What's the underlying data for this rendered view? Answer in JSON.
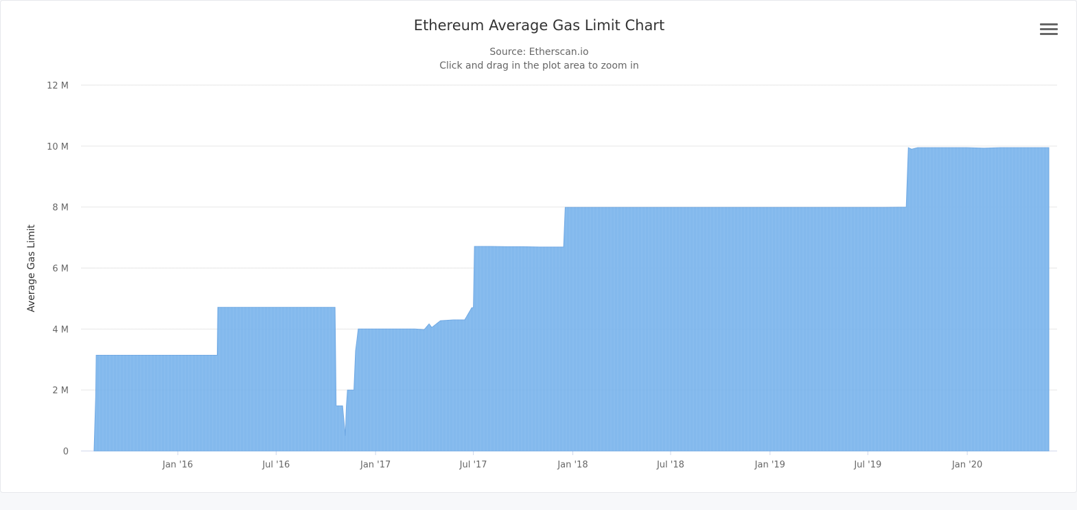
{
  "menu": {
    "icon": "hamburger-menu-icon"
  },
  "chart_data": {
    "type": "area",
    "title": "Ethereum Average Gas Limit Chart",
    "subtitle": [
      "Source: Etherscan.io",
      "Click and drag in the plot area to zoom in"
    ],
    "xlabel": "",
    "ylabel": "Average Gas Limit",
    "ylim": [
      0,
      12000000
    ],
    "xlim": [
      "2015-07-30",
      "2020-05-31"
    ],
    "y_ticks": [
      "0",
      "2 M",
      "4 M",
      "6 M",
      "8 M",
      "10 M",
      "12 M"
    ],
    "y_tick_values": [
      0,
      2000000,
      4000000,
      6000000,
      8000000,
      10000000,
      12000000
    ],
    "x_ticks": [
      "Jan '16",
      "Jul '16",
      "Jan '17",
      "Jul '17",
      "Jan '18",
      "Jul '18",
      "Jan '19",
      "Jul '19",
      "Jan '20"
    ],
    "x_tick_dates": [
      "2016-01-01",
      "2016-07-01",
      "2017-01-01",
      "2017-07-01",
      "2018-01-01",
      "2018-07-01",
      "2019-01-01",
      "2019-07-01",
      "2020-01-01"
    ],
    "grid": true,
    "legend": "none",
    "color": "#7cb5ec",
    "series": [
      {
        "x": [
          "2015-07-30",
          "2015-08-02",
          "2015-08-03",
          "2015-08-15",
          "2015-11-01",
          "2015-12-15",
          "2016-02-15",
          "2016-03-14",
          "2016-03-15",
          "2016-05-01",
          "2016-06-15",
          "2016-07-01",
          "2016-08-01",
          "2016-09-15",
          "2016-10-18",
          "2016-10-20",
          "2016-11-01",
          "2016-11-06",
          "2016-11-08",
          "2016-11-10",
          "2016-11-22",
          "2016-11-25",
          "2016-11-30",
          "2016-12-15",
          "2017-01-15",
          "2017-02-15",
          "2017-03-15",
          "2017-04-01",
          "2017-04-10",
          "2017-04-15",
          "2017-05-01",
          "2017-05-25",
          "2017-06-15",
          "2017-06-28",
          "2017-07-01",
          "2017-07-03",
          "2017-08-01",
          "2017-09-01",
          "2017-10-01",
          "2017-11-01",
          "2017-12-01",
          "2017-12-15",
          "2017-12-18",
          "2018-01-15",
          "2018-03-01",
          "2018-06-01",
          "2018-09-01",
          "2018-12-01",
          "2019-03-01",
          "2019-06-01",
          "2019-08-01",
          "2019-09-10",
          "2019-09-14",
          "2019-09-20",
          "2019-10-01",
          "2019-10-15",
          "2019-11-01",
          "2019-11-15",
          "2019-12-01",
          "2019-12-15",
          "2020-01-01",
          "2020-02-01",
          "2020-03-01",
          "2020-04-01",
          "2020-05-01",
          "2020-05-31"
        ],
        "values": [
          5000,
          1800000,
          3140000,
          3140000,
          3140000,
          3140000,
          3140000,
          3140000,
          4710000,
          4710000,
          4710000,
          4710000,
          4710000,
          4710000,
          4710000,
          1480000,
          1480000,
          500000,
          1480000,
          2000000,
          2000000,
          3280000,
          4000000,
          4000000,
          4000000,
          4000000,
          4000000,
          3980000,
          4170000,
          4050000,
          4270000,
          4300000,
          4300000,
          4700000,
          4700000,
          6710000,
          6710000,
          6700000,
          6700000,
          6690000,
          6690000,
          6690000,
          7990000,
          7990000,
          7990000,
          7990000,
          7990000,
          7990000,
          7990000,
          7990000,
          7990000,
          8000000,
          9950000,
          9900000,
          9950000,
          9950000,
          9950000,
          9950000,
          9950000,
          9950000,
          9950000,
          9930000,
          9950000,
          9950000,
          9950000,
          9950000
        ]
      }
    ]
  }
}
